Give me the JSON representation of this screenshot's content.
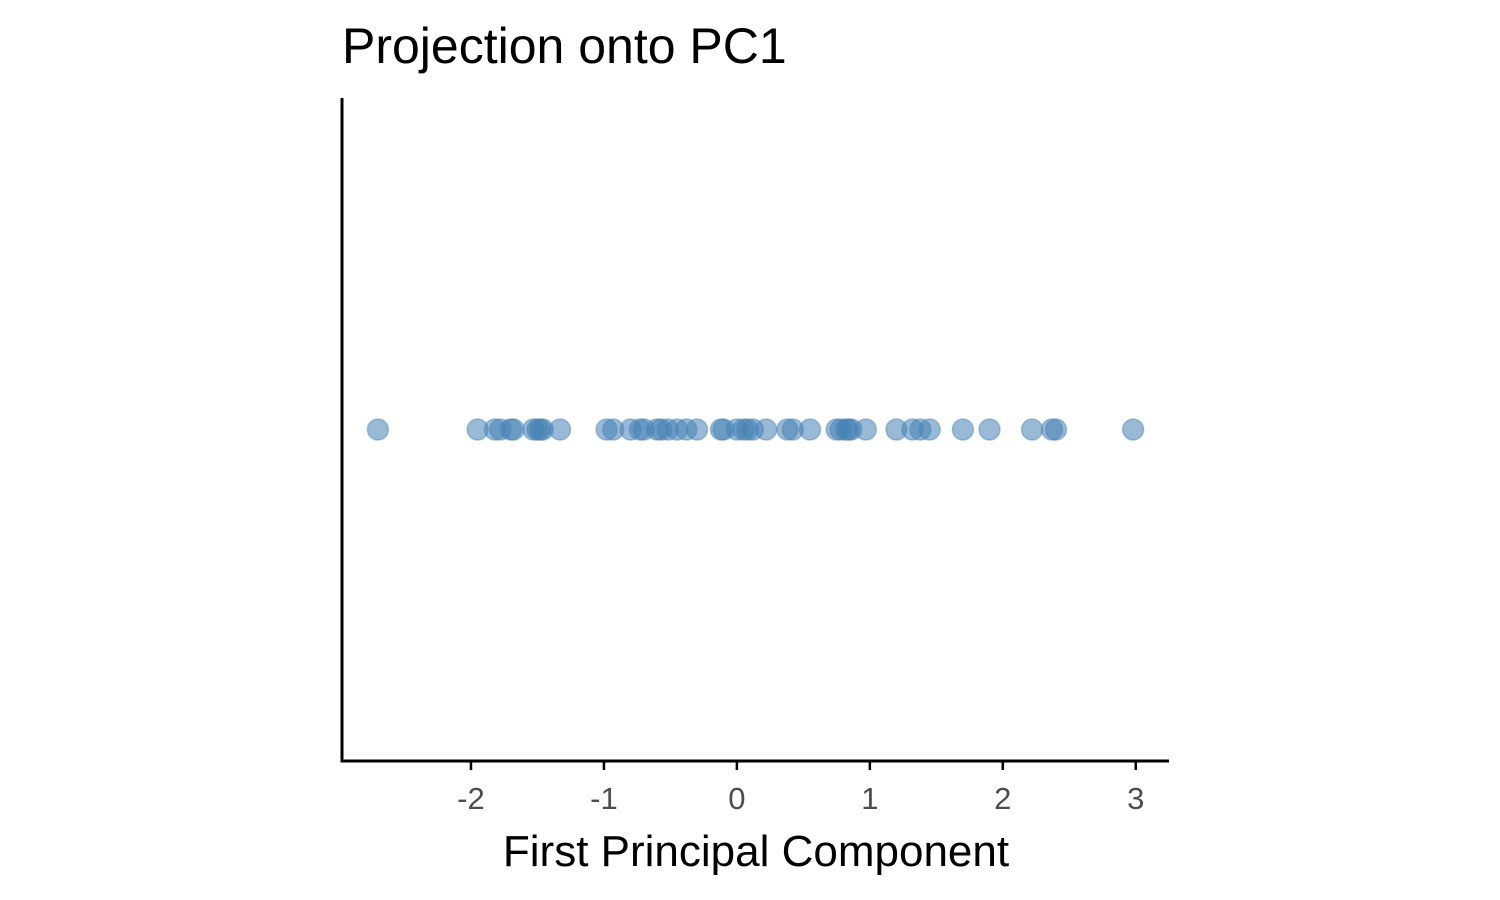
{
  "chart_data": {
    "type": "scatter",
    "title": "Projection onto PC1",
    "xlabel": "First Principal Component",
    "ylabel": "",
    "xlim": [
      -2.97,
      3.25
    ],
    "x_ticks": [
      -2,
      -1,
      0,
      1,
      2,
      3
    ],
    "x_tick_labels": [
      "-2",
      "-1",
      "0",
      "1",
      "2",
      "3"
    ],
    "y_axis_visible": true,
    "y_ticks_shown": false,
    "grid": false,
    "point_color": "#4682B4",
    "point_opacity": 0.55,
    "x": [
      -2.7,
      -1.95,
      -1.82,
      -1.78,
      -1.7,
      -1.68,
      -1.53,
      -1.5,
      -1.48,
      -1.46,
      -1.33,
      -0.98,
      -0.93,
      -0.8,
      -0.73,
      -0.7,
      -0.6,
      -0.57,
      -0.52,
      -0.45,
      -0.38,
      -0.3,
      -0.12,
      -0.1,
      0.0,
      0.05,
      0.08,
      0.12,
      0.22,
      0.38,
      0.42,
      0.55,
      0.75,
      0.78,
      0.82,
      0.84,
      0.86,
      0.97,
      1.2,
      1.32,
      1.38,
      1.45,
      1.7,
      1.9,
      2.22,
      2.37,
      2.4,
      2.98
    ],
    "y": [
      0,
      0,
      0,
      0,
      0,
      0,
      0,
      0,
      0,
      0,
      0,
      0,
      0,
      0,
      0,
      0,
      0,
      0,
      0,
      0,
      0,
      0,
      0,
      0,
      0,
      0,
      0,
      0,
      0,
      0,
      0,
      0,
      0,
      0,
      0,
      0,
      0,
      0,
      0,
      0,
      0,
      0,
      0,
      0,
      0,
      0,
      0,
      0
    ]
  }
}
